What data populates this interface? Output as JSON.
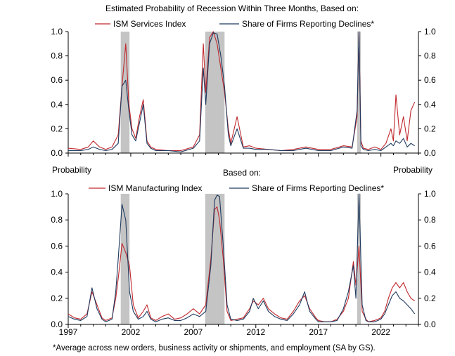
{
  "figure": {
    "title_top": "Estimated Probability of Recession Within Three  Months, Based on:",
    "left_axis_title": "Probability",
    "right_axis_title": "Probability",
    "title_bottom": "Based on:",
    "footnote": "*Average  across new orders, business activity or shipments, and employment (SA by GS).",
    "colors": {
      "red": "#c0282d",
      "navy": "#1f3a5f",
      "recession": "#c4c4c4"
    }
  },
  "chart_data": [
    {
      "type": "line",
      "title": "Estimated Probability of Recession Within Three  Months, Based on:",
      "ylim": [
        0,
        1.0
      ],
      "yticks": [
        "0.0",
        "0.2",
        "0.4",
        "0.6",
        "0.8",
        "1.0"
      ],
      "xlim": [
        1997,
        2025
      ],
      "recessions": [
        [
          2001.2,
          2001.9
        ],
        [
          2007.95,
          2009.5
        ],
        [
          2020.1,
          2020.4
        ]
      ],
      "series": [
        {
          "name": "ISM Services Index",
          "color": "#c0282d",
          "x": [
            1997.0,
            1998.0,
            1998.6,
            1999.0,
            1999.5,
            2000.0,
            2000.5,
            2001.0,
            2001.3,
            2001.6,
            2001.85,
            2002.1,
            2002.4,
            2002.7,
            2003.0,
            2003.3,
            2003.6,
            2004.0,
            2005.0,
            2006.0,
            2007.0,
            2007.5,
            2007.8,
            2008.0,
            2008.3,
            2008.6,
            2008.9,
            2009.2,
            2009.5,
            2009.8,
            2010.0,
            2010.5,
            2011.0,
            2011.5,
            2012.0,
            2013.0,
            2014.0,
            2015.0,
            2016.0,
            2017.0,
            2018.0,
            2019.0,
            2019.7,
            2020.1,
            2020.25,
            2020.4,
            2020.6,
            2021.0,
            2021.5,
            2022.0,
            2022.4,
            2022.8,
            2023.0,
            2023.2,
            2023.5,
            2023.8,
            2024.1,
            2024.4,
            2024.7
          ],
          "values": [
            0.04,
            0.03,
            0.05,
            0.1,
            0.05,
            0.03,
            0.05,
            0.15,
            0.55,
            0.9,
            0.4,
            0.2,
            0.12,
            0.3,
            0.44,
            0.1,
            0.05,
            0.03,
            0.02,
            0.02,
            0.05,
            0.15,
            0.9,
            0.5,
            0.95,
            1.0,
            0.9,
            0.7,
            0.5,
            0.2,
            0.08,
            0.3,
            0.05,
            0.06,
            0.04,
            0.03,
            0.02,
            0.03,
            0.05,
            0.03,
            0.03,
            0.06,
            0.05,
            0.3,
            1.0,
            0.1,
            0.04,
            0.03,
            0.05,
            0.03,
            0.08,
            0.2,
            0.1,
            0.48,
            0.15,
            0.3,
            0.1,
            0.35,
            0.42
          ]
        },
        {
          "name": "Share of Firms Reporting Declines*",
          "color": "#1f3a5f",
          "x": [
            1997.0,
            1998.0,
            1998.6,
            1999.0,
            1999.5,
            2000.0,
            2000.5,
            2001.0,
            2001.3,
            2001.6,
            2001.85,
            2002.1,
            2002.4,
            2002.7,
            2003.0,
            2003.3,
            2003.6,
            2004.0,
            2005.0,
            2006.0,
            2007.0,
            2007.5,
            2007.8,
            2008.0,
            2008.3,
            2008.6,
            2008.9,
            2009.2,
            2009.5,
            2009.8,
            2010.0,
            2010.5,
            2011.0,
            2011.5,
            2012.0,
            2013.0,
            2014.0,
            2015.0,
            2016.0,
            2017.0,
            2018.0,
            2019.0,
            2019.7,
            2020.1,
            2020.25,
            2020.4,
            2020.6,
            2021.0,
            2021.5,
            2022.0,
            2022.4,
            2022.8,
            2023.0,
            2023.2,
            2023.5,
            2023.8,
            2024.1,
            2024.4,
            2024.7
          ],
          "values": [
            0.02,
            0.02,
            0.03,
            0.05,
            0.03,
            0.02,
            0.03,
            0.08,
            0.55,
            0.6,
            0.35,
            0.15,
            0.1,
            0.25,
            0.4,
            0.08,
            0.04,
            0.02,
            0.02,
            0.01,
            0.04,
            0.1,
            0.7,
            0.4,
            0.9,
            0.99,
            0.98,
            0.8,
            0.55,
            0.15,
            0.06,
            0.2,
            0.04,
            0.04,
            0.03,
            0.03,
            0.02,
            0.02,
            0.04,
            0.02,
            0.02,
            0.05,
            0.04,
            0.35,
            1.0,
            0.06,
            0.03,
            0.02,
            0.03,
            0.02,
            0.05,
            0.08,
            0.06,
            0.1,
            0.08,
            0.12,
            0.05,
            0.08,
            0.06
          ]
        }
      ]
    },
    {
      "type": "line",
      "title": "Based on:",
      "ylim": [
        0,
        1.0
      ],
      "yticks": [
        "0.0",
        "0.2",
        "0.4",
        "0.6",
        "0.8",
        "1.0"
      ],
      "xlim": [
        1997,
        2025
      ],
      "xticks": [
        "1997",
        "2002",
        "2007",
        "2012",
        "2017",
        "2022"
      ],
      "recessions": [
        [
          2001.2,
          2001.9
        ],
        [
          2007.95,
          2009.5
        ],
        [
          2020.1,
          2020.4
        ]
      ],
      "series": [
        {
          "name": "ISM Manufacturing Index",
          "color": "#c0282d",
          "x": [
            1997.0,
            1997.5,
            1998.0,
            1998.5,
            1998.9,
            1999.3,
            1999.7,
            2000.0,
            2000.5,
            2000.8,
            2001.0,
            2001.3,
            2001.6,
            2001.9,
            2002.2,
            2002.6,
            2003.0,
            2003.3,
            2003.6,
            2004.0,
            2004.5,
            2005.0,
            2005.5,
            2006.0,
            2006.5,
            2007.0,
            2007.5,
            2008.0,
            2008.4,
            2008.7,
            2008.9,
            2009.1,
            2009.4,
            2009.7,
            2010.0,
            2010.5,
            2011.0,
            2011.5,
            2011.8,
            2012.2,
            2012.6,
            2013.0,
            2013.5,
            2014.0,
            2014.5,
            2015.0,
            2015.5,
            2015.9,
            2016.3,
            2016.8,
            2017.0,
            2017.5,
            2018.0,
            2018.5,
            2019.0,
            2019.4,
            2019.8,
            2020.0,
            2020.25,
            2020.5,
            2020.8,
            2021.0,
            2021.5,
            2022.0,
            2022.3,
            2022.6,
            2022.9,
            2023.2,
            2023.5,
            2023.8,
            2024.1,
            2024.4,
            2024.7
          ],
          "values": [
            0.08,
            0.05,
            0.04,
            0.08,
            0.25,
            0.15,
            0.05,
            0.03,
            0.05,
            0.2,
            0.35,
            0.62,
            0.55,
            0.45,
            0.15,
            0.05,
            0.1,
            0.15,
            0.05,
            0.03,
            0.06,
            0.08,
            0.04,
            0.05,
            0.08,
            0.12,
            0.08,
            0.15,
            0.5,
            0.88,
            0.9,
            0.8,
            0.5,
            0.1,
            0.03,
            0.04,
            0.05,
            0.12,
            0.18,
            0.15,
            0.2,
            0.12,
            0.08,
            0.05,
            0.04,
            0.1,
            0.18,
            0.22,
            0.12,
            0.05,
            0.03,
            0.02,
            0.02,
            0.04,
            0.1,
            0.2,
            0.48,
            0.3,
            0.6,
            0.1,
            0.04,
            0.02,
            0.03,
            0.05,
            0.1,
            0.2,
            0.28,
            0.32,
            0.28,
            0.32,
            0.25,
            0.2,
            0.18
          ]
        },
        {
          "name": "Share of Firms Reporting Declines*",
          "color": "#1f3a5f",
          "x": [
            1997.0,
            1997.5,
            1998.0,
            1998.5,
            1998.9,
            1999.3,
            1999.7,
            2000.0,
            2000.5,
            2000.8,
            2001.0,
            2001.3,
            2001.6,
            2001.9,
            2002.2,
            2002.6,
            2003.0,
            2003.3,
            2003.6,
            2004.0,
            2004.5,
            2005.0,
            2005.5,
            2006.0,
            2006.5,
            2007.0,
            2007.5,
            2008.0,
            2008.4,
            2008.7,
            2008.9,
            2009.1,
            2009.4,
            2009.7,
            2010.0,
            2010.5,
            2011.0,
            2011.5,
            2011.8,
            2012.2,
            2012.6,
            2013.0,
            2013.5,
            2014.0,
            2014.5,
            2015.0,
            2015.5,
            2015.9,
            2016.3,
            2016.8,
            2017.0,
            2017.5,
            2018.0,
            2018.5,
            2019.0,
            2019.4,
            2019.8,
            2020.0,
            2020.25,
            2020.5,
            2020.8,
            2021.0,
            2021.5,
            2022.0,
            2022.3,
            2022.6,
            2022.9,
            2023.2,
            2023.5,
            2023.8,
            2024.1,
            2024.4,
            2024.7
          ],
          "values": [
            0.06,
            0.04,
            0.03,
            0.06,
            0.28,
            0.12,
            0.04,
            0.02,
            0.04,
            0.25,
            0.5,
            0.92,
            0.8,
            0.25,
            0.1,
            0.04,
            0.06,
            0.1,
            0.04,
            0.02,
            0.04,
            0.05,
            0.03,
            0.03,
            0.05,
            0.08,
            0.06,
            0.1,
            0.45,
            0.95,
            0.99,
            0.98,
            0.6,
            0.15,
            0.04,
            0.03,
            0.04,
            0.1,
            0.2,
            0.12,
            0.18,
            0.1,
            0.06,
            0.04,
            0.03,
            0.08,
            0.15,
            0.25,
            0.1,
            0.04,
            0.02,
            0.02,
            0.02,
            0.03,
            0.12,
            0.25,
            0.45,
            0.2,
            1.0,
            0.15,
            0.03,
            0.02,
            0.02,
            0.04,
            0.08,
            0.15,
            0.22,
            0.25,
            0.2,
            0.18,
            0.15,
            0.12,
            0.08
          ]
        }
      ]
    }
  ]
}
